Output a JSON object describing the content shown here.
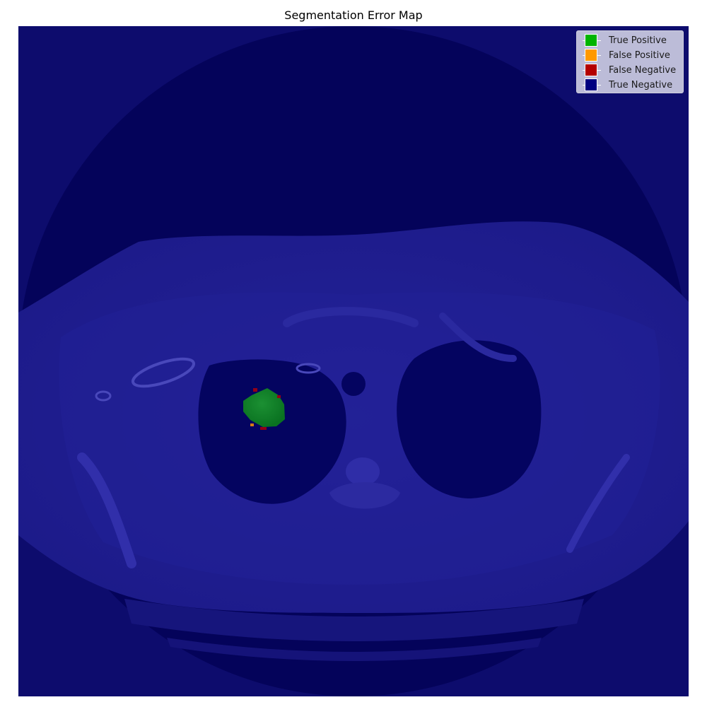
{
  "title": "Segmentation Error Map",
  "legend": {
    "items": [
      {
        "label": "True Positive",
        "color": "#00b400"
      },
      {
        "label": "False Positive",
        "color": "#ff9900"
      },
      {
        "label": "False Negative",
        "color": "#b40000"
      },
      {
        "label": "True Negative",
        "color": "#000080"
      }
    ]
  },
  "image": {
    "content": "axial chest CT slice overlaid with segmentation error colors",
    "background_color": "#110f6a"
  }
}
